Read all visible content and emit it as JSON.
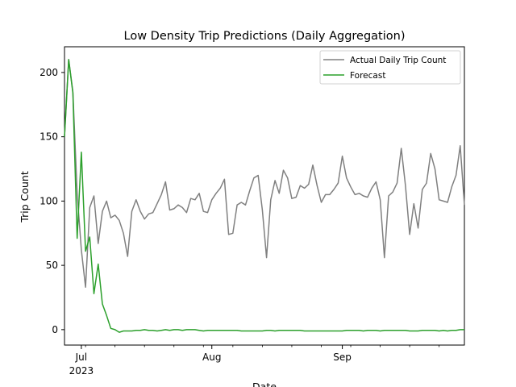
{
  "chart_data": {
    "type": "line",
    "title": "Low Density Trip Predictions (Daily Aggregation)",
    "xlabel": "Date",
    "ylabel": "Trip Count",
    "x_start": "2023-06-27",
    "x_end": "2023-09-30",
    "ylim": [
      -12,
      220
    ],
    "yticks": [
      0,
      50,
      100,
      150,
      200
    ],
    "xticks": [
      {
        "date": "2023-07-01",
        "label": "Jul",
        "sublabel": "2023"
      },
      {
        "date": "2023-08-01",
        "label": "Aug",
        "sublabel": ""
      },
      {
        "date": "2023-09-01",
        "label": "Sep",
        "sublabel": ""
      }
    ],
    "legend_position": "top-right",
    "grid": false,
    "series": [
      {
        "name": "Actual Daily Trip Count",
        "color": "#808080",
        "values": [
          150,
          210,
          185,
          106,
          62,
          33,
          95,
          104,
          67,
          92,
          100,
          87,
          89,
          85,
          75,
          57,
          92,
          101,
          92,
          86,
          90,
          91,
          98,
          105,
          115,
          93,
          94,
          97,
          95,
          91,
          102,
          101,
          106,
          92,
          91,
          101,
          106,
          110,
          117,
          74,
          75,
          97,
          99,
          97,
          108,
          118,
          120,
          93,
          56,
          101,
          116,
          106,
          124,
          118,
          102,
          103,
          112,
          110,
          113,
          128,
          112,
          99,
          105,
          105,
          109,
          114,
          135,
          118,
          111,
          105,
          106,
          104,
          103,
          110,
          115,
          101,
          56,
          104,
          107,
          114,
          141,
          112,
          74,
          98,
          79,
          109,
          114,
          137,
          125,
          101,
          100,
          99,
          111,
          120,
          143,
          97
        ]
      },
      {
        "name": "Forecast",
        "color": "#2ca02c",
        "values": [
          150,
          210,
          184,
          71,
          138,
          61,
          72,
          28,
          51,
          20,
          11,
          1,
          0,
          -2,
          -1,
          -1,
          -1,
          -0.5,
          -0.5,
          0,
          -0.5,
          -0.5,
          -1,
          -0.5,
          0,
          -0.5,
          0,
          0,
          -0.5,
          0,
          0,
          0,
          -0.5,
          -1,
          -0.5,
          -0.5,
          -0.5,
          -0.5,
          -0.5,
          -0.5,
          -0.5,
          -0.5,
          -1,
          -1,
          -1,
          -1,
          -1,
          -1,
          -0.5,
          -0.5,
          -1,
          -0.5,
          -0.5,
          -0.5,
          -0.5,
          -0.5,
          -0.5,
          -1,
          -1,
          -1,
          -1,
          -1,
          -1,
          -1,
          -1,
          -1,
          -1,
          -0.5,
          -0.5,
          -0.5,
          -0.5,
          -1,
          -0.5,
          -0.5,
          -0.5,
          -1,
          -0.5,
          -0.5,
          -0.5,
          -0.5,
          -0.5,
          -0.5,
          -1,
          -1,
          -1,
          -0.5,
          -0.5,
          -0.5,
          -0.5,
          -1,
          -0.5,
          -1,
          -0.5,
          -0.5,
          0,
          0
        ]
      }
    ]
  }
}
